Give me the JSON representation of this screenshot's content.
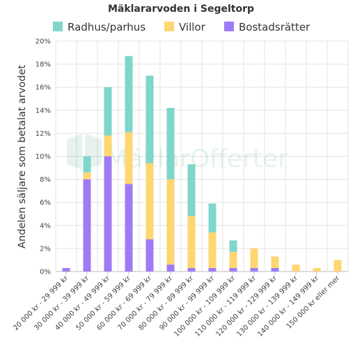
{
  "chart_data": {
    "type": "bar",
    "stacked": true,
    "title": "Mäklararvoden i Segeltorp",
    "ylabel": "Andelen säljare som betalat arvodet",
    "xlabel": "",
    "ylim": [
      0,
      20
    ],
    "yticks": [
      "0%",
      "2%",
      "4%",
      "6%",
      "8%",
      "10%",
      "12%",
      "14%",
      "16%",
      "18%",
      "20%"
    ],
    "grid": true,
    "legend_position": "top",
    "watermark": "MäklarOfferter",
    "categories": [
      "20 000 kr - 29 999 kr",
      "30 000 kr - 39 999 kr",
      "40 000 kr - 49 999 kr",
      "50 000 kr - 59 999 kr",
      "60 000 kr - 69 999 kr",
      "70 000 kr - 79 999 kr",
      "80 000 kr - 89 999 kr",
      "90 000 kr - 99 999 kr",
      "100 000 kr - 109 999 kr",
      "110 000 kr - 119 999 kr",
      "120 000 kr - 129 999 kr",
      "130 000 kr - 139 999 kr",
      "140 000 kr - 149 999 kr",
      "150 000 kr eller mer"
    ],
    "series": [
      {
        "name": "Bostadsrätter",
        "color": "#9e7bf5",
        "values": [
          0.3,
          8.0,
          10.0,
          7.6,
          2.8,
          0.6,
          0.3,
          0.3,
          0.3,
          0.3,
          0.3,
          0.0,
          0.0,
          0.0
        ]
      },
      {
        "name": "Villor",
        "color": "#fed672",
        "values": [
          0.0,
          0.6,
          1.8,
          4.5,
          6.6,
          7.4,
          4.5,
          3.1,
          1.4,
          1.7,
          1.0,
          0.6,
          0.3,
          1.0
        ]
      },
      {
        "name": "Radhus/parhus",
        "color": "#7fd6cb",
        "values": [
          0.0,
          1.4,
          4.2,
          6.6,
          7.6,
          6.2,
          4.5,
          2.5,
          1.0,
          0.0,
          0.0,
          0.0,
          0.0,
          0.0
        ]
      }
    ],
    "legend_order": [
      "Radhus/parhus",
      "Villor",
      "Bostadsrätter"
    ]
  }
}
